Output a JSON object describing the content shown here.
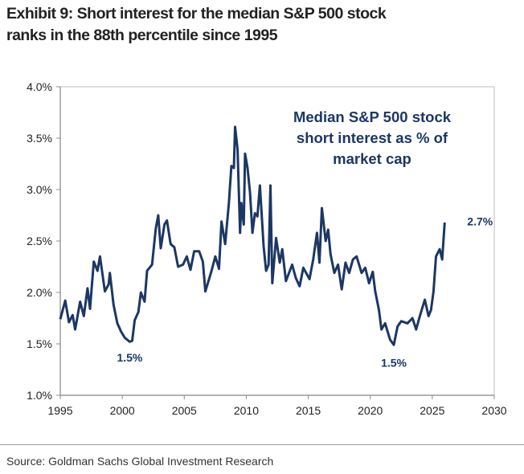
{
  "title_line1": "Exhibit 9: Short interest for the median S&P 500 stock",
  "title_line2": "ranks in the 88th percentile since 1995",
  "source": "Source: Goldman Sachs Global Investment Research",
  "chart_data": {
    "type": "line",
    "title": "Exhibit 9: Short interest for the median S&P 500 stock ranks in the 88th percentile since 1995",
    "xlabel": "",
    "ylabel": "",
    "xlim": [
      1995,
      2030
    ],
    "ylim": [
      1.0,
      4.0
    ],
    "x_ticks": [
      1995,
      2000,
      2005,
      2010,
      2015,
      2020,
      2025,
      2030
    ],
    "x_tick_labels": [
      "1995",
      "2000",
      "2005",
      "2010",
      "2015",
      "2020",
      "2025",
      "2030"
    ],
    "y_ticks": [
      1.0,
      1.5,
      2.0,
      2.5,
      3.0,
      3.5,
      4.0
    ],
    "y_tick_labels": [
      "1.0%",
      "1.5%",
      "2.0%",
      "2.5%",
      "3.0%",
      "3.5%",
      "4.0%"
    ],
    "grid": false,
    "line_color": "#1c3764",
    "series_label": [
      "Median S&P 500 stock",
      "short interest as % of",
      "market cap"
    ],
    "annotations": [
      {
        "text": "1.5%",
        "x": 2000.6,
        "y": 1.5
      },
      {
        "text": "1.5%",
        "x": 2021.9,
        "y": 1.49
      },
      {
        "text": "2.7%",
        "x": 2026.0,
        "y": 2.7
      }
    ],
    "series": [
      {
        "x": [
          1995.0,
          1995.4,
          1995.7,
          1996.0,
          1996.2,
          1996.6,
          1996.9,
          1997.2,
          1997.4,
          1997.7,
          1998.0,
          1998.2,
          1998.6,
          1998.9,
          1999.0,
          1999.3,
          1999.6,
          1999.9,
          2000.2,
          2000.6,
          2000.8,
          2001.0,
          2001.3,
          2001.5,
          2001.8,
          2002.0,
          2002.4,
          2002.7,
          2002.9,
          2003.1,
          2003.4,
          2003.6,
          2003.9,
          2004.2,
          2004.5,
          2004.9,
          2005.2,
          2005.5,
          2005.8,
          2006.2,
          2006.5,
          2006.7,
          2006.9,
          2007.2,
          2007.5,
          2007.8,
          2008.0,
          2008.3,
          2008.6,
          2008.8,
          2009.0,
          2009.1,
          2009.3,
          2009.5,
          2009.6,
          2009.8,
          2009.9,
          2010.1,
          2010.3,
          2010.5,
          2010.7,
          2010.9,
          2011.1,
          2011.4,
          2011.6,
          2011.8,
          2011.95,
          2012.1,
          2012.4,
          2012.7,
          2012.9,
          2013.2,
          2013.7,
          2014.0,
          2014.3,
          2014.6,
          2015.1,
          2015.4,
          2015.7,
          2015.9,
          2016.1,
          2016.4,
          2016.6,
          2016.8,
          2017.1,
          2017.4,
          2017.7,
          2018.0,
          2018.3,
          2018.6,
          2018.9,
          2019.3,
          2019.6,
          2019.9,
          2020.2,
          2020.4,
          2020.7,
          2020.9,
          2021.2,
          2021.6,
          2021.9,
          2022.2,
          2022.5,
          2023.0,
          2023.4,
          2023.7,
          2024.0,
          2024.4,
          2024.7,
          2024.9,
          2025.1,
          2025.3,
          2025.6,
          2025.8,
          2026.0
        ],
        "y": [
          1.74,
          1.92,
          1.71,
          1.78,
          1.64,
          1.91,
          1.77,
          2.04,
          1.84,
          2.3,
          2.21,
          2.35,
          2.01,
          2.08,
          2.19,
          1.88,
          1.7,
          1.62,
          1.56,
          1.52,
          1.53,
          1.73,
          1.81,
          2.0,
          1.91,
          2.21,
          2.27,
          2.62,
          2.75,
          2.43,
          2.66,
          2.7,
          2.47,
          2.44,
          2.25,
          2.27,
          2.35,
          2.22,
          2.4,
          2.4,
          2.3,
          2.01,
          2.09,
          2.21,
          2.35,
          2.23,
          2.69,
          2.47,
          2.87,
          3.23,
          3.21,
          3.61,
          3.39,
          2.58,
          2.87,
          2.66,
          3.35,
          3.21,
          2.97,
          2.58,
          2.77,
          2.74,
          3.04,
          2.45,
          2.21,
          2.27,
          3.04,
          2.09,
          2.53,
          2.29,
          2.42,
          2.11,
          2.27,
          2.14,
          2.06,
          2.24,
          2.13,
          2.32,
          2.58,
          2.29,
          2.82,
          2.5,
          2.61,
          2.37,
          2.19,
          2.27,
          2.03,
          2.29,
          2.19,
          2.32,
          2.35,
          2.19,
          2.24,
          2.09,
          2.2,
          2.01,
          1.83,
          1.64,
          1.7,
          1.54,
          1.49,
          1.67,
          1.72,
          1.7,
          1.75,
          1.64,
          1.77,
          1.93,
          1.77,
          1.83,
          2.01,
          2.35,
          2.42,
          2.32,
          2.68
        ]
      }
    ]
  }
}
